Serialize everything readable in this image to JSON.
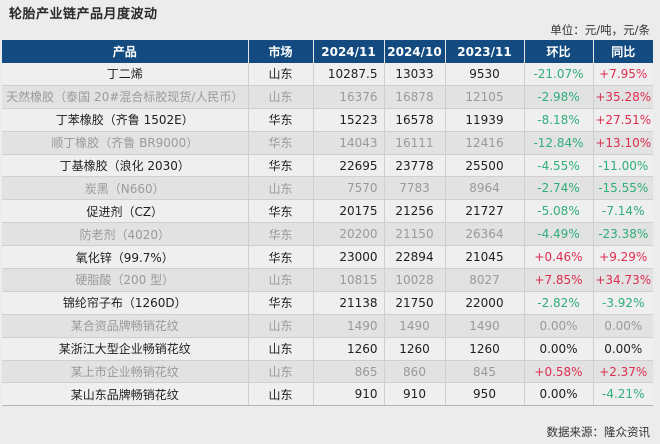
{
  "title": "轮胎产业链产品月度波动",
  "unit": "单位：元/吨，元/条",
  "colors": {
    "header_bg": "#134a7f",
    "positive": "#dc2e4f",
    "negative": "#2fae7a"
  },
  "columns": [
    "产品",
    "市场",
    "2024/11",
    "2024/10",
    "2023/11",
    "环比",
    "同比"
  ],
  "rows": [
    {
      "product": "丁二烯",
      "market": "山东",
      "v2411": "10287.5",
      "v2410": "13033",
      "v2311": "9530",
      "mom": "-21.07%",
      "yoy": "+7.95%"
    },
    {
      "product": "天然橡胶（泰国 20#混合标胶现货/人民币）",
      "market": "山东",
      "v2411": "16376",
      "v2410": "16878",
      "v2311": "12105",
      "mom": "-2.98%",
      "yoy": "+35.28%"
    },
    {
      "product": "丁苯橡胶（齐鲁 1502E）",
      "market": "华东",
      "v2411": "15223",
      "v2410": "16578",
      "v2311": "11939",
      "mom": "-8.18%",
      "yoy": "+27.51%"
    },
    {
      "product": "顺丁橡胶（齐鲁 BR9000）",
      "market": "华东",
      "v2411": "14043",
      "v2410": "16111",
      "v2311": "12416",
      "mom": "-12.84%",
      "yoy": "+13.10%"
    },
    {
      "product": "丁基橡胶（浪化 2030）",
      "market": "华东",
      "v2411": "22695",
      "v2410": "23778",
      "v2311": "25500",
      "mom": "-4.55%",
      "yoy": "-11.00%"
    },
    {
      "product": "炭黑（N660）",
      "market": "山东",
      "v2411": "7570",
      "v2410": "7783",
      "v2311": "8964",
      "mom": "-2.74%",
      "yoy": "-15.55%"
    },
    {
      "product": "促进剂（CZ）",
      "market": "华东",
      "v2411": "20175",
      "v2410": "21256",
      "v2311": "21727",
      "mom": "-5.08%",
      "yoy": "-7.14%"
    },
    {
      "product": "防老剂（4020）",
      "market": "华东",
      "v2411": "20200",
      "v2410": "21150",
      "v2311": "26364",
      "mom": "-4.49%",
      "yoy": "-23.38%"
    },
    {
      "product": "氧化锌（99.7%）",
      "market": "华东",
      "v2411": "23000",
      "v2410": "22894",
      "v2311": "21045",
      "mom": "+0.46%",
      "yoy": "+9.29%"
    },
    {
      "product": "硬脂酸（200 型）",
      "market": "山东",
      "v2411": "10815",
      "v2410": "10028",
      "v2311": "8027",
      "mom": "+7.85%",
      "yoy": "+34.73%"
    },
    {
      "product": "锦纶帘子布（1260D）",
      "market": "华东",
      "v2411": "21138",
      "v2410": "21750",
      "v2311": "22000",
      "mom": "-2.82%",
      "yoy": "-3.92%"
    },
    {
      "product": "某合资品牌畅销花纹",
      "market": "山东",
      "v2411": "1490",
      "v2410": "1490",
      "v2311": "1490",
      "mom": "0.00%",
      "yoy": "0.00%"
    },
    {
      "product": "某浙江大型企业畅销花纹",
      "market": "山东",
      "v2411": "1260",
      "v2410": "1260",
      "v2311": "1260",
      "mom": "0.00%",
      "yoy": "0.00%"
    },
    {
      "product": "某上市企业畅销花纹",
      "market": "山东",
      "v2411": "865",
      "v2410": "860",
      "v2311": "845",
      "mom": "+0.58%",
      "yoy": "+2.37%"
    },
    {
      "product": "某山东品牌畅销花纹",
      "market": "山东",
      "v2411": "910",
      "v2410": "910",
      "v2311": "950",
      "mom": "0.00%",
      "yoy": "-4.21%"
    }
  ],
  "footer": "数据来源：隆众资讯"
}
